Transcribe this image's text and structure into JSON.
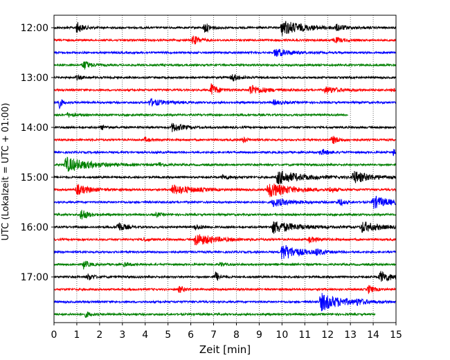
{
  "chart_data": {
    "type": "line",
    "title": "",
    "xlabel": "Zeit  [min]",
    "ylabel": "UTC (Lokalzeit = UTC + 01:00)",
    "xlim": [
      0,
      15
    ],
    "x_ticks": [
      0,
      1,
      2,
      3,
      4,
      5,
      6,
      7,
      8,
      9,
      10,
      11,
      12,
      13,
      14,
      15
    ],
    "y_tick_labels": [
      "12:00",
      "13:00",
      "14:00",
      "15:00",
      "16:00",
      "17:00"
    ],
    "trace_start": "12:00",
    "trace_interval_min": 15,
    "trace_count": 24,
    "grid": "vertical dotted at each minute",
    "trace_colors": [
      "#000000",
      "#ff0000",
      "#0000ff",
      "#008000"
    ],
    "series": [
      {
        "start_time": "12:00",
        "color": "#000000",
        "events": [
          {
            "t": 1.0,
            "amp": 8,
            "dur": 0.6
          },
          {
            "t": 6.6,
            "amp": 8,
            "dur": 0.5
          },
          {
            "t": 10.0,
            "amp": 11,
            "dur": 2.0
          },
          {
            "t": 12.4,
            "amp": 4,
            "dur": 0.8
          }
        ]
      },
      {
        "start_time": "12:15",
        "color": "#ff0000",
        "events": [
          {
            "t": 6.1,
            "amp": 7,
            "dur": 0.6
          },
          {
            "t": 12.3,
            "amp": 4,
            "dur": 0.8
          }
        ]
      },
      {
        "start_time": "12:30",
        "color": "#0000ff",
        "events": [
          {
            "t": 9.7,
            "amp": 6,
            "dur": 1.3
          }
        ]
      },
      {
        "start_time": "12:45",
        "color": "#008000",
        "events": [
          {
            "t": 1.3,
            "amp": 7,
            "dur": 0.6
          }
        ]
      },
      {
        "start_time": "13:00",
        "color": "#000000",
        "events": [
          {
            "t": 7.8,
            "amp": 6,
            "dur": 0.6
          },
          {
            "t": 1.0,
            "amp": 3,
            "dur": 0.5
          }
        ]
      },
      {
        "start_time": "13:15",
        "color": "#ff0000",
        "events": [
          {
            "t": 6.9,
            "amp": 9,
            "dur": 0.6
          },
          {
            "t": 8.6,
            "amp": 7,
            "dur": 1.3
          },
          {
            "t": 11.9,
            "amp": 5,
            "dur": 1.3
          },
          {
            "t": 14.8,
            "amp": 3,
            "dur": 0.4
          }
        ]
      },
      {
        "start_time": "13:30",
        "color": "#0000ff",
        "events": [
          {
            "t": 0.2,
            "amp": 10,
            "dur": 0.3
          },
          {
            "t": 4.2,
            "amp": 5,
            "dur": 1.4
          },
          {
            "t": 9.6,
            "amp": 3,
            "dur": 1.0
          }
        ]
      },
      {
        "start_time": "13:45",
        "color": "#008000",
        "events": [
          {
            "t": 0.6,
            "amp": 3,
            "dur": 0.7
          }
        ],
        "end_min": 12.9
      },
      {
        "start_time": "14:00",
        "color": "#000000",
        "events": [
          {
            "t": 5.2,
            "amp": 7,
            "dur": 0.9
          },
          {
            "t": 2.1,
            "amp": 3,
            "dur": 0.4
          }
        ]
      },
      {
        "start_time": "14:15",
        "color": "#ff0000",
        "events": [
          {
            "t": 8.3,
            "amp": 4,
            "dur": 0.4
          },
          {
            "t": 12.2,
            "amp": 6,
            "dur": 0.6
          },
          {
            "t": 4.0,
            "amp": 3,
            "dur": 0.5
          }
        ]
      },
      {
        "start_time": "14:30",
        "color": "#0000ff",
        "events": [
          {
            "t": 11.7,
            "amp": 4,
            "dur": 0.8
          },
          {
            "t": 14.9,
            "amp": 5,
            "dur": 0.3
          }
        ]
      },
      {
        "start_time": "14:45",
        "color": "#008000",
        "events": [
          {
            "t": 0.5,
            "amp": 11,
            "dur": 2.2
          },
          {
            "t": 4.6,
            "amp": 3,
            "dur": 0.5
          }
        ]
      },
      {
        "start_time": "15:00",
        "color": "#000000",
        "events": [
          {
            "t": 9.8,
            "amp": 10,
            "dur": 2.2
          },
          {
            "t": 13.1,
            "amp": 9,
            "dur": 1.6
          },
          {
            "t": 7.4,
            "amp": 3,
            "dur": 0.8
          }
        ]
      },
      {
        "start_time": "15:15",
        "color": "#ff0000",
        "events": [
          {
            "t": 1.0,
            "amp": 7,
            "dur": 1.3
          },
          {
            "t": 5.2,
            "amp": 7,
            "dur": 1.9
          },
          {
            "t": 9.4,
            "amp": 11,
            "dur": 2.0
          },
          {
            "t": 12.1,
            "amp": 3,
            "dur": 0.6
          }
        ]
      },
      {
        "start_time": "15:30",
        "color": "#0000ff",
        "events": [
          {
            "t": 9.6,
            "amp": 6,
            "dur": 1.6
          },
          {
            "t": 12.5,
            "amp": 6,
            "dur": 0.4
          },
          {
            "t": 14.0,
            "amp": 9,
            "dur": 1.5
          }
        ]
      },
      {
        "start_time": "15:45",
        "color": "#008000",
        "events": [
          {
            "t": 1.2,
            "amp": 9,
            "dur": 0.6
          },
          {
            "t": 4.5,
            "amp": 3,
            "dur": 0.4
          }
        ]
      },
      {
        "start_time": "16:00",
        "color": "#000000",
        "events": [
          {
            "t": 2.8,
            "amp": 8,
            "dur": 0.6
          },
          {
            "t": 9.6,
            "amp": 9,
            "dur": 2.2
          },
          {
            "t": 13.5,
            "amp": 8,
            "dur": 1.5
          },
          {
            "t": 6.2,
            "amp": 4,
            "dur": 0.6
          }
        ]
      },
      {
        "start_time": "16:15",
        "color": "#ff0000",
        "events": [
          {
            "t": 6.2,
            "amp": 9,
            "dur": 1.8
          },
          {
            "t": 11.2,
            "amp": 4,
            "dur": 0.8
          },
          {
            "t": 3.9,
            "amp": 3,
            "dur": 0.4
          }
        ]
      },
      {
        "start_time": "16:30",
        "color": "#0000ff",
        "events": [
          {
            "t": 10.0,
            "amp": 12,
            "dur": 1.5
          },
          {
            "t": 11.5,
            "amp": 4,
            "dur": 0.6
          }
        ]
      },
      {
        "start_time": "16:45",
        "color": "#008000",
        "events": [
          {
            "t": 1.3,
            "amp": 6,
            "dur": 0.5
          },
          {
            "t": 3.1,
            "amp": 3,
            "dur": 0.5
          },
          {
            "t": 7.3,
            "amp": 3,
            "dur": 0.4
          }
        ]
      },
      {
        "start_time": "17:00",
        "color": "#000000",
        "events": [
          {
            "t": 1.5,
            "amp": 5,
            "dur": 0.5
          },
          {
            "t": 7.1,
            "amp": 7,
            "dur": 0.4
          },
          {
            "t": 14.3,
            "amp": 8,
            "dur": 1.2
          }
        ]
      },
      {
        "start_time": "17:15",
        "color": "#ff0000",
        "events": [
          {
            "t": 5.5,
            "amp": 5,
            "dur": 0.5
          },
          {
            "t": 13.8,
            "amp": 6,
            "dur": 0.5
          }
        ]
      },
      {
        "start_time": "17:30",
        "color": "#0000ff",
        "events": [
          {
            "t": 11.7,
            "amp": 13,
            "dur": 2.0
          },
          {
            "t": 13.3,
            "amp": 3,
            "dur": 0.6
          }
        ]
      },
      {
        "start_time": "17:45",
        "color": "#008000",
        "events": [
          {
            "t": 1.4,
            "amp": 4,
            "dur": 0.5
          }
        ],
        "end_min": 14.1
      }
    ]
  }
}
